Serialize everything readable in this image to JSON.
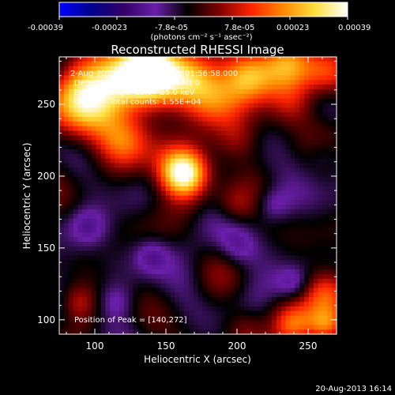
{
  "chart_data": {
    "type": "heatmap",
    "title": "Reconstructed RHESSI Image",
    "xlabel": "Heliocentric X (arcsec)",
    "ylabel": "Heliocentric Y (arcsec)",
    "xlim": [
      75,
      270
    ],
    "ylim": [
      90,
      283
    ],
    "x_ticks": [
      100,
      150,
      200,
      250
    ],
    "y_ticks": [
      100,
      150,
      200,
      250
    ],
    "colorbar": {
      "range": [
        -0.00039,
        0.00039
      ],
      "tick_labels": [
        "-0.00039",
        "-0.00023",
        "-7.8e-05",
        "7.8e-05",
        "0.00023",
        "0.00039"
      ],
      "unit_label": "(photons cm⁻² s⁻¹ asec⁻²)",
      "colormap": [
        "#0000ff",
        "#00008c",
        "#320066",
        "#6a1faa",
        "#000000",
        "#7f0000",
        "#ff2400",
        "#ff8a00",
        "#ffe040",
        "#ffffff"
      ]
    },
    "annotations": [
      " 2-Aug-2011 01:56:00.000 to 01:56:58.000",
      "Detectors: 4F 5F 6F 7F 8F, Att 0",
      "Energy Range: 12.0 - 25.0 keV",
      "Clean     Total counts: 1.55E+04"
    ],
    "peak_label": "Position of Peak = [140,272]",
    "sources": [
      {
        "x": 162,
        "y": 202,
        "amp": 0.00039,
        "sigma": 11
      },
      {
        "x": 150,
        "y": 212,
        "amp": 0.00013,
        "sigma": 16
      },
      {
        "x": 95,
        "y": 250,
        "amp": 0.00036,
        "sigma": 18
      },
      {
        "x": 120,
        "y": 268,
        "amp": 0.00034,
        "sigma": 16
      },
      {
        "x": 140,
        "y": 272,
        "amp": 0.00037,
        "sigma": 14
      },
      {
        "x": 168,
        "y": 268,
        "amp": 0.00031,
        "sigma": 14
      },
      {
        "x": 208,
        "y": 270,
        "amp": 0.00033,
        "sigma": 13
      },
      {
        "x": 185,
        "y": 252,
        "amp": 0.00016,
        "sigma": 14
      },
      {
        "x": 240,
        "y": 250,
        "amp": 0.00014,
        "sigma": 12
      },
      {
        "x": 235,
        "y": 278,
        "amp": 0.0002,
        "sigma": 12
      },
      {
        "x": 262,
        "y": 272,
        "amp": 0.00022,
        "sigma": 12
      },
      {
        "x": 120,
        "y": 225,
        "amp": 0.00011,
        "sigma": 12
      },
      {
        "x": 198,
        "y": 180,
        "amp": 0.00011,
        "sigma": 10
      },
      {
        "x": 262,
        "y": 118,
        "amp": 0.00021,
        "sigma": 12
      },
      {
        "x": 240,
        "y": 96,
        "amp": 0.0002,
        "sigma": 10
      },
      {
        "x": 262,
        "y": 96,
        "amp": 0.00024,
        "sigma": 9
      },
      {
        "x": 88,
        "y": 112,
        "amp": 0.00012,
        "sigma": 9
      },
      {
        "x": 205,
        "y": 95,
        "amp": 9e-05,
        "sigma": 10
      },
      {
        "x": 200,
        "y": 225,
        "amp": 0.00011,
        "sigma": 11
      },
      {
        "x": 95,
        "y": 165,
        "amp": -0.00012,
        "sigma": 10
      },
      {
        "x": 140,
        "y": 145,
        "amp": -0.00011,
        "sigma": 9
      },
      {
        "x": 200,
        "y": 150,
        "amp": -0.0001,
        "sigma": 10
      },
      {
        "x": 240,
        "y": 125,
        "amp": -0.00013,
        "sigma": 9
      },
      {
        "x": 225,
        "y": 180,
        "amp": -0.00011,
        "sigma": 9
      },
      {
        "x": 115,
        "y": 112,
        "amp": -9e-05,
        "sigma": 9
      },
      {
        "x": 260,
        "y": 215,
        "amp": -9e-05,
        "sigma": 9
      }
    ],
    "noise": [
      {
        "kx": 0.09,
        "ky": 0.07,
        "phase": 0.4,
        "amp": 4e-05
      },
      {
        "kx": 0.05,
        "ky": 0.11,
        "phase": 1.3,
        "amp": 4e-05
      },
      {
        "kx": 0.13,
        "ky": 0.04,
        "phase": 2.1,
        "amp": 3e-05
      }
    ],
    "baseline": -5e-05
  },
  "timestamp": "20-Aug-2013 16:14"
}
